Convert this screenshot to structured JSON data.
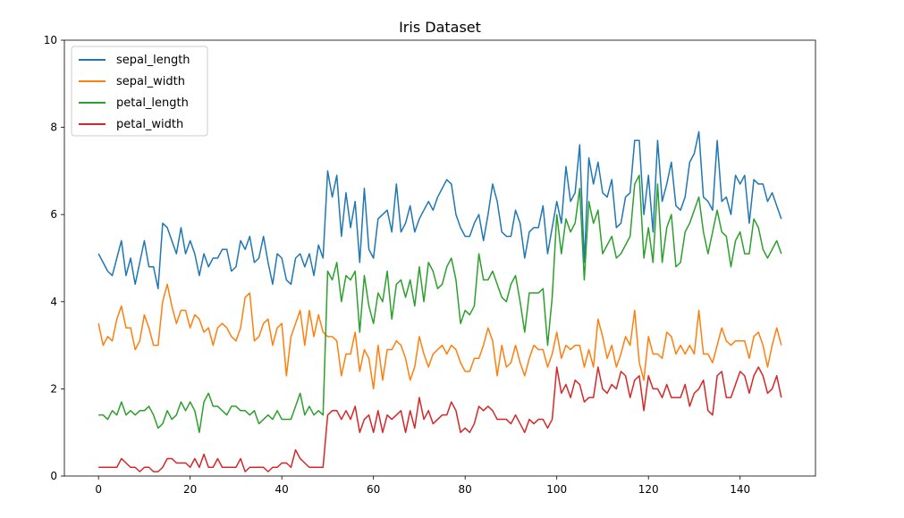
{
  "chart_data": {
    "type": "line",
    "title": "Iris Dataset",
    "xlabel": "",
    "ylabel": "",
    "xlim": [
      -7.45,
      156.45
    ],
    "ylim": [
      0,
      10
    ],
    "xticks": [
      0,
      20,
      40,
      60,
      80,
      100,
      120,
      140
    ],
    "yticks": [
      0,
      2,
      4,
      6,
      8,
      10
    ],
    "grid": false,
    "legend": "top-left",
    "series": [
      {
        "name": "sepal_length",
        "color": "#1f77b4",
        "values": [
          5.1,
          4.9,
          4.7,
          4.6,
          5.0,
          5.4,
          4.6,
          5.0,
          4.4,
          4.9,
          5.4,
          4.8,
          4.8,
          4.3,
          5.8,
          5.7,
          5.4,
          5.1,
          5.7,
          5.1,
          5.4,
          5.1,
          4.6,
          5.1,
          4.8,
          5.0,
          5.0,
          5.2,
          5.2,
          4.7,
          4.8,
          5.4,
          5.2,
          5.5,
          4.9,
          5.0,
          5.5,
          4.9,
          4.4,
          5.1,
          5.0,
          4.5,
          4.4,
          5.0,
          5.1,
          4.8,
          5.1,
          4.6,
          5.3,
          5.0,
          7.0,
          6.4,
          6.9,
          5.5,
          6.5,
          5.7,
          6.3,
          4.9,
          6.6,
          5.2,
          5.0,
          5.9,
          6.0,
          6.1,
          5.6,
          6.7,
          5.6,
          5.8,
          6.2,
          5.6,
          5.9,
          6.1,
          6.3,
          6.1,
          6.4,
          6.6,
          6.8,
          6.7,
          6.0,
          5.7,
          5.5,
          5.5,
          5.8,
          6.0,
          5.4,
          6.0,
          6.7,
          6.3,
          5.6,
          5.5,
          5.5,
          6.1,
          5.8,
          5.0,
          5.6,
          5.7,
          5.7,
          6.2,
          5.1,
          5.7,
          6.3,
          5.8,
          7.1,
          6.3,
          6.5,
          7.6,
          4.9,
          7.3,
          6.7,
          7.2,
          6.5,
          6.4,
          6.8,
          5.7,
          5.8,
          6.4,
          6.5,
          7.7,
          7.7,
          6.0,
          6.9,
          5.6,
          7.7,
          6.3,
          6.7,
          7.2,
          6.2,
          6.1,
          6.4,
          7.2,
          7.4,
          7.9,
          6.4,
          6.3,
          6.1,
          7.7,
          6.3,
          6.4,
          6.0,
          6.9,
          6.7,
          6.9,
          5.8,
          6.8,
          6.7,
          6.7,
          6.3,
          6.5,
          6.2,
          5.9
        ]
      },
      {
        "name": "sepal_width",
        "color": "#ff7f0e",
        "values": [
          3.5,
          3.0,
          3.2,
          3.1,
          3.6,
          3.9,
          3.4,
          3.4,
          2.9,
          3.1,
          3.7,
          3.4,
          3.0,
          3.0,
          4.0,
          4.4,
          3.9,
          3.5,
          3.8,
          3.8,
          3.4,
          3.7,
          3.6,
          3.3,
          3.4,
          3.0,
          3.4,
          3.5,
          3.4,
          3.2,
          3.1,
          3.4,
          4.1,
          4.2,
          3.1,
          3.2,
          3.5,
          3.6,
          3.0,
          3.4,
          3.5,
          2.3,
          3.2,
          3.5,
          3.8,
          3.0,
          3.8,
          3.2,
          3.7,
          3.3,
          3.2,
          3.2,
          3.1,
          2.3,
          2.8,
          2.8,
          3.3,
          2.4,
          2.9,
          2.7,
          2.0,
          3.0,
          2.2,
          2.9,
          2.9,
          3.1,
          3.0,
          2.7,
          2.2,
          2.5,
          3.2,
          2.8,
          2.5,
          2.8,
          2.9,
          3.0,
          2.8,
          3.0,
          2.9,
          2.6,
          2.4,
          2.4,
          2.7,
          2.7,
          3.0,
          3.4,
          3.1,
          2.3,
          3.0,
          2.5,
          2.6,
          3.0,
          2.6,
          2.3,
          2.7,
          3.0,
          2.9,
          2.9,
          2.5,
          2.8,
          3.3,
          2.7,
          3.0,
          2.9,
          3.0,
          3.0,
          2.5,
          2.9,
          2.5,
          3.6,
          3.2,
          2.7,
          3.0,
          2.5,
          2.8,
          3.2,
          3.0,
          3.8,
          2.6,
          2.2,
          3.2,
          2.8,
          2.8,
          2.7,
          3.3,
          3.2,
          2.8,
          3.0,
          2.8,
          3.0,
          2.8,
          3.8,
          2.8,
          2.8,
          2.6,
          3.0,
          3.4,
          3.1,
          3.0,
          3.1,
          3.1,
          3.1,
          2.7,
          3.2,
          3.3,
          3.0,
          2.5,
          3.0,
          3.4,
          3.0
        ]
      },
      {
        "name": "petal_length",
        "color": "#2ca02c",
        "values": [
          1.4,
          1.4,
          1.3,
          1.5,
          1.4,
          1.7,
          1.4,
          1.5,
          1.4,
          1.5,
          1.5,
          1.6,
          1.4,
          1.1,
          1.2,
          1.5,
          1.3,
          1.4,
          1.7,
          1.5,
          1.7,
          1.5,
          1.0,
          1.7,
          1.9,
          1.6,
          1.6,
          1.5,
          1.4,
          1.6,
          1.6,
          1.5,
          1.5,
          1.4,
          1.5,
          1.2,
          1.3,
          1.4,
          1.3,
          1.5,
          1.3,
          1.3,
          1.3,
          1.6,
          1.9,
          1.4,
          1.6,
          1.4,
          1.5,
          1.4,
          4.7,
          4.5,
          4.9,
          4.0,
          4.6,
          4.5,
          4.7,
          3.3,
          4.6,
          3.9,
          3.5,
          4.2,
          4.0,
          4.7,
          3.6,
          4.4,
          4.5,
          4.1,
          4.5,
          3.9,
          4.8,
          4.0,
          4.9,
          4.7,
          4.3,
          4.4,
          4.8,
          5.0,
          4.5,
          3.5,
          3.8,
          3.7,
          3.9,
          5.1,
          4.5,
          4.5,
          4.7,
          4.4,
          4.1,
          4.0,
          4.4,
          4.6,
          4.0,
          3.3,
          4.2,
          4.2,
          4.2,
          4.3,
          3.0,
          4.1,
          6.0,
          5.1,
          5.9,
          5.6,
          5.8,
          6.6,
          4.5,
          6.3,
          5.8,
          6.1,
          5.1,
          5.3,
          5.5,
          5.0,
          5.1,
          5.3,
          5.5,
          6.7,
          6.9,
          5.0,
          5.7,
          4.9,
          6.7,
          4.9,
          5.7,
          6.0,
          4.8,
          4.9,
          5.6,
          5.8,
          6.1,
          6.4,
          5.6,
          5.1,
          5.6,
          6.1,
          5.6,
          5.5,
          4.8,
          5.4,
          5.6,
          5.1,
          5.1,
          5.9,
          5.7,
          5.2,
          5.0,
          5.2,
          5.4,
          5.1
        ]
      },
      {
        "name": "petal_width",
        "color": "#d62728",
        "values": [
          0.2,
          0.2,
          0.2,
          0.2,
          0.2,
          0.4,
          0.3,
          0.2,
          0.2,
          0.1,
          0.2,
          0.2,
          0.1,
          0.1,
          0.2,
          0.4,
          0.4,
          0.3,
          0.3,
          0.3,
          0.2,
          0.4,
          0.2,
          0.5,
          0.2,
          0.2,
          0.4,
          0.2,
          0.2,
          0.2,
          0.2,
          0.4,
          0.1,
          0.2,
          0.2,
          0.2,
          0.2,
          0.1,
          0.2,
          0.2,
          0.3,
          0.3,
          0.2,
          0.6,
          0.4,
          0.3,
          0.2,
          0.2,
          0.2,
          0.2,
          1.4,
          1.5,
          1.5,
          1.3,
          1.5,
          1.3,
          1.6,
          1.0,
          1.3,
          1.4,
          1.0,
          1.5,
          1.0,
          1.4,
          1.3,
          1.4,
          1.5,
          1.0,
          1.5,
          1.1,
          1.8,
          1.3,
          1.5,
          1.2,
          1.3,
          1.4,
          1.4,
          1.7,
          1.5,
          1.0,
          1.1,
          1.0,
          1.2,
          1.6,
          1.5,
          1.6,
          1.5,
          1.3,
          1.3,
          1.3,
          1.2,
          1.4,
          1.2,
          1.0,
          1.3,
          1.2,
          1.3,
          1.3,
          1.1,
          1.3,
          2.5,
          1.9,
          2.1,
          1.8,
          2.2,
          2.1,
          1.7,
          1.8,
          1.8,
          2.5,
          2.0,
          1.9,
          2.1,
          2.0,
          2.4,
          2.3,
          1.8,
          2.2,
          2.3,
          1.5,
          2.3,
          2.0,
          2.0,
          1.8,
          2.1,
          1.8,
          1.8,
          1.8,
          2.1,
          1.6,
          1.9,
          2.0,
          2.2,
          1.5,
          1.4,
          2.3,
          2.4,
          1.8,
          1.8,
          2.1,
          2.4,
          2.3,
          1.9,
          2.3,
          2.5,
          2.3,
          1.9,
          2.0,
          2.3,
          1.8
        ]
      }
    ]
  }
}
